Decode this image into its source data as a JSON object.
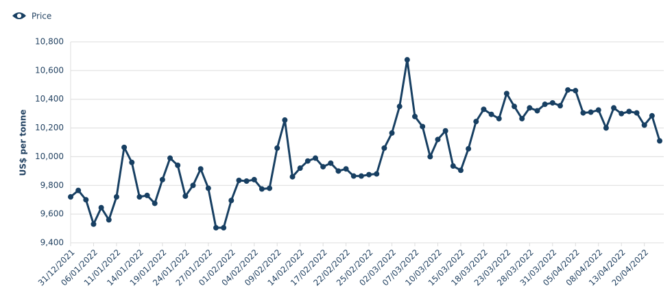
{
  "chart_data": {
    "type": "line",
    "legend": "Price",
    "y_label": "US$ per tonne",
    "categories": [
      "31/12/2021",
      null,
      null,
      "06/01/2022",
      null,
      null,
      "11/01/2022",
      null,
      null,
      "14/01/2022",
      null,
      null,
      "19/01/2022",
      null,
      null,
      "24/01/2022",
      null,
      null,
      "27/01/2022",
      null,
      null,
      "01/02/2022",
      null,
      null,
      "04/02/2022",
      null,
      null,
      "09/02/2022",
      null,
      null,
      "14/02/2022",
      null,
      null,
      "17/02/2022",
      null,
      null,
      "22/02/2022",
      null,
      null,
      "25/02/2022",
      null,
      null,
      "02/03/2022",
      null,
      null,
      "07/03/2022",
      null,
      null,
      "10/03/2022",
      null,
      null,
      "15/03/2022",
      null,
      null,
      "18/03/2022",
      null,
      null,
      "23/03/2022",
      null,
      null,
      "28/03/2022",
      null,
      null,
      "31/03/2022",
      null,
      null,
      "05/04/2022",
      null,
      null,
      "08/04/2022",
      null,
      null,
      "13/04/2022",
      null,
      null,
      "20/04/2022",
      null,
      null
    ],
    "series": [
      {
        "name": "Price",
        "color": "#173f62",
        "values": [
          9720,
          9765,
          9700,
          9530,
          9645,
          9560,
          9720,
          10065,
          9960,
          9720,
          9730,
          9675,
          9840,
          9990,
          9940,
          9725,
          9800,
          9915,
          9780,
          9505,
          9505,
          9695,
          9835,
          9830,
          9840,
          9775,
          9780,
          10060,
          10255,
          9860,
          9920,
          9970,
          9990,
          9930,
          9955,
          9900,
          9915,
          9865,
          9865,
          9875,
          9880,
          10060,
          10165,
          10350,
          10675,
          10280,
          10210,
          10000,
          10120,
          10180,
          9935,
          9905,
          10055,
          10245,
          10330,
          10295,
          10265,
          10440,
          10350,
          10265,
          10340,
          10320,
          10365,
          10375,
          10355,
          10465,
          10460,
          10305,
          10310,
          10325,
          10200,
          10340,
          10300,
          10315,
          10305,
          10220,
          10285,
          10110
        ]
      }
    ],
    "ylim": [
      9400,
      10800
    ],
    "yticks": [
      {
        "value": 9400,
        "label": "9,400"
      },
      {
        "value": 9600,
        "label": "9,600"
      },
      {
        "value": 9800,
        "label": "9,800"
      },
      {
        "value": 10000,
        "label": "10,000"
      },
      {
        "value": 10200,
        "label": "10,200"
      },
      {
        "value": 10400,
        "label": "10,400"
      },
      {
        "value": 10600,
        "label": "10,600"
      },
      {
        "value": 10800,
        "label": "10,800"
      }
    ],
    "grid": true
  }
}
